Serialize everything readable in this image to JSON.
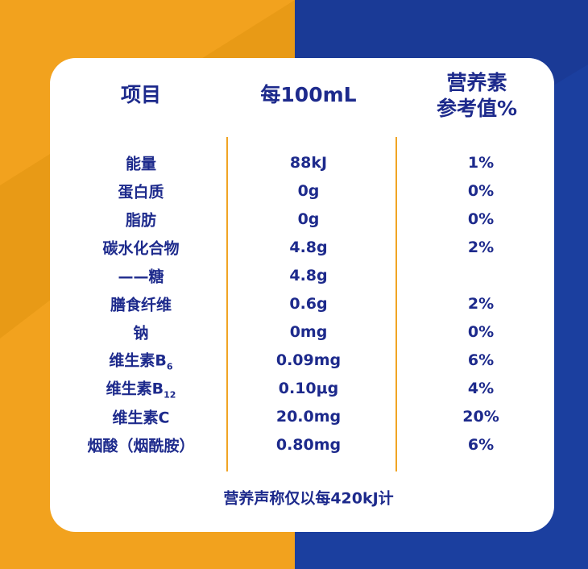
{
  "header": {
    "item": "项目",
    "amount": "每100mL",
    "nrv": [
      "营养素",
      "参考值%"
    ]
  },
  "table": {
    "rows": [
      {
        "item": "能量",
        "amount": "88kJ",
        "nrv": "1%"
      },
      {
        "item": "蛋白质",
        "amount": "0g",
        "nrv": "0%"
      },
      {
        "item": "脂肪",
        "amount": "0g",
        "nrv": "0%"
      },
      {
        "item": "碳水化合物",
        "amount": "4.8g",
        "nrv": "2%"
      },
      {
        "item": "——糖",
        "amount": "4.8g"
      },
      {
        "item": "膳食纤维",
        "amount": "0.6g",
        "nrv": "2%"
      },
      {
        "item": "钠",
        "amount": "0mg",
        "nrv": "0%"
      },
      {
        "item": "维生素B",
        "item_sub": "6",
        "amount": "0.09mg",
        "nrv": "6%"
      },
      {
        "item": "维生素B",
        "item_sub": "12",
        "amount": "0.10μg",
        "nrv": "4%"
      },
      {
        "item": "维生素C",
        "amount": "20.0mg",
        "nrv": "20%"
      },
      {
        "item": "烟酸（烟酰胺）",
        "amount": "0.80mg",
        "nrv": "6%"
      }
    ]
  },
  "footnote": "营养声称仅以每420kJ计"
}
